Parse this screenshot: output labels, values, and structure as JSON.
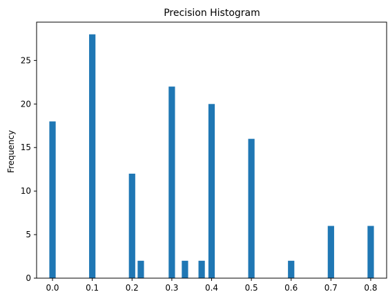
{
  "chart_data": {
    "type": "bar",
    "title": "Precision Histogram",
    "xlabel": "",
    "ylabel": "Frequency",
    "x_ticks": [
      "0.0",
      "0.1",
      "0.2",
      "0.3",
      "0.4",
      "0.5",
      "0.6",
      "0.7",
      "0.8"
    ],
    "y_ticks": [
      "0",
      "5",
      "10",
      "15",
      "20",
      "25"
    ],
    "xlim": [
      -0.04,
      0.84
    ],
    "ylim": [
      0,
      29.4
    ],
    "bin_width": 0.016,
    "bars": [
      {
        "x": 0.0,
        "value": 18
      },
      {
        "x": 0.1,
        "value": 28
      },
      {
        "x": 0.2,
        "value": 12
      },
      {
        "x": 0.222,
        "value": 2
      },
      {
        "x": 0.3,
        "value": 22
      },
      {
        "x": 0.333,
        "value": 2
      },
      {
        "x": 0.375,
        "value": 2
      },
      {
        "x": 0.4,
        "value": 20
      },
      {
        "x": 0.5,
        "value": 16
      },
      {
        "x": 0.6,
        "value": 2
      },
      {
        "x": 0.7,
        "value": 6
      },
      {
        "x": 0.8,
        "value": 6
      }
    ],
    "colors": {
      "bar": "#1f77b4",
      "axis": "#000000"
    },
    "grid": false,
    "legend": "none"
  }
}
